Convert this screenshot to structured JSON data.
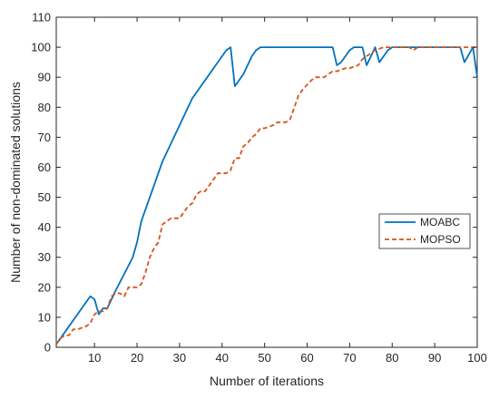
{
  "chart_data": {
    "type": "line",
    "title": "",
    "xlabel": "Number of iterations",
    "ylabel": "Number of non-dominated solutions",
    "xlim": [
      1,
      100
    ],
    "ylim": [
      0,
      110
    ],
    "xticks": [
      10,
      20,
      30,
      40,
      50,
      60,
      70,
      80,
      90,
      100
    ],
    "yticks": [
      0,
      10,
      20,
      30,
      40,
      50,
      60,
      70,
      80,
      90,
      100,
      110
    ],
    "grid": false,
    "legend_position": "right",
    "series": [
      {
        "name": "MOABC",
        "color": "#0072BD",
        "line_style": "solid",
        "points": [
          [
            1,
            1
          ],
          [
            2,
            3
          ],
          [
            9,
            17
          ],
          [
            10,
            16
          ],
          [
            11,
            11
          ],
          [
            12,
            13
          ],
          [
            13,
            13
          ],
          [
            15,
            19
          ],
          [
            19,
            30
          ],
          [
            20,
            35
          ],
          [
            21,
            42
          ],
          [
            26,
            62
          ],
          [
            33,
            83
          ],
          [
            41,
            99
          ],
          [
            42,
            100
          ],
          [
            43,
            87
          ],
          [
            45,
            91
          ],
          [
            47,
            97
          ],
          [
            48,
            99
          ],
          [
            49,
            100
          ],
          [
            66,
            100
          ],
          [
            67,
            94
          ],
          [
            68,
            95
          ],
          [
            70,
            99
          ],
          [
            71,
            100
          ],
          [
            73,
            100
          ],
          [
            74,
            94
          ],
          [
            76,
            100
          ],
          [
            77,
            95
          ],
          [
            79,
            99
          ],
          [
            80,
            100
          ],
          [
            96,
            100
          ],
          [
            97,
            95
          ],
          [
            99,
            100
          ],
          [
            100,
            90
          ]
        ]
      },
      {
        "name": "MOPSO",
        "color": "#D95319",
        "line_style": "dashed",
        "points": [
          [
            1,
            1
          ],
          [
            2,
            3
          ],
          [
            3,
            4
          ],
          [
            4,
            4
          ],
          [
            5,
            6
          ],
          [
            6,
            6
          ],
          [
            8,
            7
          ],
          [
            9,
            8
          ],
          [
            10,
            11
          ],
          [
            11,
            12
          ],
          [
            12,
            12
          ],
          [
            13,
            13
          ],
          [
            14,
            17
          ],
          [
            15,
            18
          ],
          [
            16,
            18
          ],
          [
            17,
            17
          ],
          [
            18,
            20
          ],
          [
            19,
            20
          ],
          [
            20,
            20
          ],
          [
            21,
            21
          ],
          [
            22,
            25
          ],
          [
            23,
            30
          ],
          [
            24,
            33
          ],
          [
            25,
            35
          ],
          [
            26,
            41
          ],
          [
            27,
            42
          ],
          [
            28,
            43
          ],
          [
            30,
            43
          ],
          [
            32,
            47
          ],
          [
            33,
            48
          ],
          [
            34,
            51
          ],
          [
            35,
            52
          ],
          [
            36,
            52
          ],
          [
            37,
            54
          ],
          [
            38,
            56
          ],
          [
            39,
            58
          ],
          [
            41,
            58
          ],
          [
            42,
            59
          ],
          [
            43,
            63
          ],
          [
            44,
            63
          ],
          [
            45,
            67
          ],
          [
            46,
            68
          ],
          [
            47,
            70
          ],
          [
            48,
            71
          ],
          [
            49,
            73
          ],
          [
            50,
            73
          ],
          [
            52,
            74
          ],
          [
            53,
            75
          ],
          [
            55,
            75
          ],
          [
            56,
            76
          ],
          [
            58,
            84
          ],
          [
            59,
            86
          ],
          [
            61,
            89
          ],
          [
            62,
            90
          ],
          [
            64,
            90
          ],
          [
            65,
            91
          ],
          [
            66,
            92
          ],
          [
            67,
            92
          ],
          [
            69,
            93
          ],
          [
            70,
            93
          ],
          [
            72,
            94
          ],
          [
            73,
            96
          ],
          [
            75,
            98
          ],
          [
            76,
            99
          ],
          [
            78,
            100
          ],
          [
            84,
            100
          ],
          [
            85,
            99
          ],
          [
            86,
            100
          ],
          [
            100,
            100
          ]
        ]
      }
    ]
  }
}
